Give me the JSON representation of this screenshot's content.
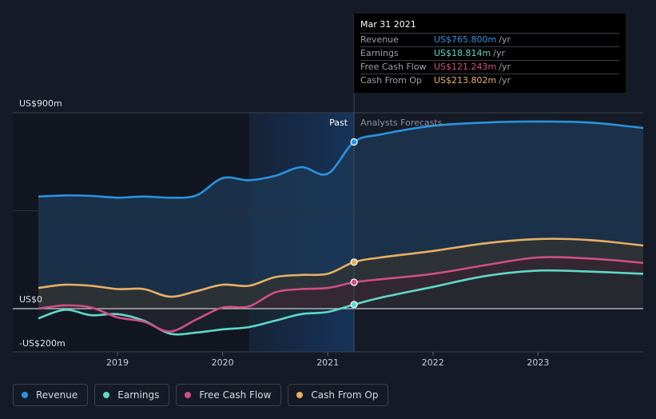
{
  "chart_data": {
    "type": "line",
    "title": "",
    "ylabel": "",
    "ylim": [
      -200,
      900
    ],
    "y_tick_labels": [
      {
        "value": 900,
        "label": "US$900m"
      },
      {
        "value": 0,
        "label": "US$0"
      },
      {
        "value": -200,
        "label": "-US$200m"
      }
    ],
    "x_ticks": [
      {
        "value": 2019,
        "label": "2019"
      },
      {
        "value": 2020,
        "label": "2020"
      },
      {
        "value": 2021,
        "label": "2021"
      },
      {
        "value": 2022,
        "label": "2022"
      },
      {
        "value": 2023,
        "label": "2023"
      }
    ],
    "xlim": [
      2018.0,
      2024.0
    ],
    "past_label": "Past",
    "forecast_label": "Analysts Forecasts",
    "divider_x": 2021.25,
    "highlight_start_x": 2020.25,
    "tooltip_x": 2021.25,
    "series": [
      {
        "name": "Revenue",
        "color": "#2a93e0",
        "fill": "#1e3a56",
        "x": [
          2018.25,
          2018.5,
          2018.75,
          2019.0,
          2019.25,
          2019.5,
          2019.75,
          2020.0,
          2020.25,
          2020.5,
          2020.75,
          2021.0,
          2021.25,
          2021.5,
          2022.0,
          2022.5,
          2023.0,
          2023.5,
          2024.0
        ],
        "y": [
          515,
          520,
          518,
          510,
          515,
          510,
          520,
          600,
          590,
          610,
          650,
          620,
          765.8,
          800,
          840,
          855,
          860,
          855,
          830
        ]
      },
      {
        "name": "Earnings",
        "color": "#5fd9c7",
        "fill": "#1b2a30",
        "x": [
          2018.25,
          2018.5,
          2018.75,
          2019.0,
          2019.25,
          2019.5,
          2019.75,
          2020.0,
          2020.25,
          2020.5,
          2020.75,
          2021.0,
          2021.25,
          2021.5,
          2022.0,
          2022.5,
          2023.0,
          2023.5,
          2024.0
        ],
        "y": [
          -45,
          -5,
          -30,
          -25,
          -55,
          -115,
          -110,
          -95,
          -85,
          -55,
          -25,
          -15,
          18.814,
          50,
          100,
          150,
          175,
          170,
          160
        ]
      },
      {
        "name": "Free Cash Flow",
        "color": "#d04f86",
        "fill": "#3a1f30",
        "x": [
          2018.25,
          2018.5,
          2018.75,
          2019.0,
          2019.25,
          2019.5,
          2019.75,
          2020.0,
          2020.25,
          2020.5,
          2020.75,
          2021.0,
          2021.25,
          2021.5,
          2022.0,
          2022.5,
          2023.0,
          2023.5,
          2024.0
        ],
        "y": [
          0,
          15,
          5,
          -40,
          -60,
          -105,
          -50,
          5,
          10,
          75,
          90,
          95,
          121.243,
          135,
          160,
          200,
          235,
          230,
          210
        ]
      },
      {
        "name": "Cash From Op",
        "color": "#e8b066",
        "fill": "#3a3326",
        "x": [
          2018.25,
          2018.5,
          2018.75,
          2019.0,
          2019.25,
          2019.5,
          2019.75,
          2020.0,
          2020.25,
          2020.5,
          2020.75,
          2021.0,
          2021.25,
          2021.5,
          2022.0,
          2022.5,
          2023.0,
          2023.5,
          2024.0
        ],
        "y": [
          95,
          110,
          105,
          90,
          90,
          55,
          80,
          110,
          105,
          145,
          155,
          160,
          213.802,
          235,
          265,
          300,
          320,
          315,
          290
        ]
      }
    ]
  },
  "tooltip": {
    "date": "Mar 31 2021",
    "rows": [
      {
        "label": "Revenue",
        "value": "US$765.800m",
        "unit": "/yr",
        "color": "#2a93e0"
      },
      {
        "label": "Earnings",
        "value": "US$18.814m",
        "unit": "/yr",
        "color": "#5fd9c7"
      },
      {
        "label": "Free Cash Flow",
        "value": "US$121.243m",
        "unit": "/yr",
        "color": "#d04f86"
      },
      {
        "label": "Cash From Op",
        "value": "US$213.802m",
        "unit": "/yr",
        "color": "#e8b066"
      }
    ]
  },
  "legend": [
    {
      "label": "Revenue",
      "color": "#2a93e0"
    },
    {
      "label": "Earnings",
      "color": "#5fd9c7"
    },
    {
      "label": "Free Cash Flow",
      "color": "#d04f86"
    },
    {
      "label": "Cash From Op",
      "color": "#e8b066"
    }
  ]
}
